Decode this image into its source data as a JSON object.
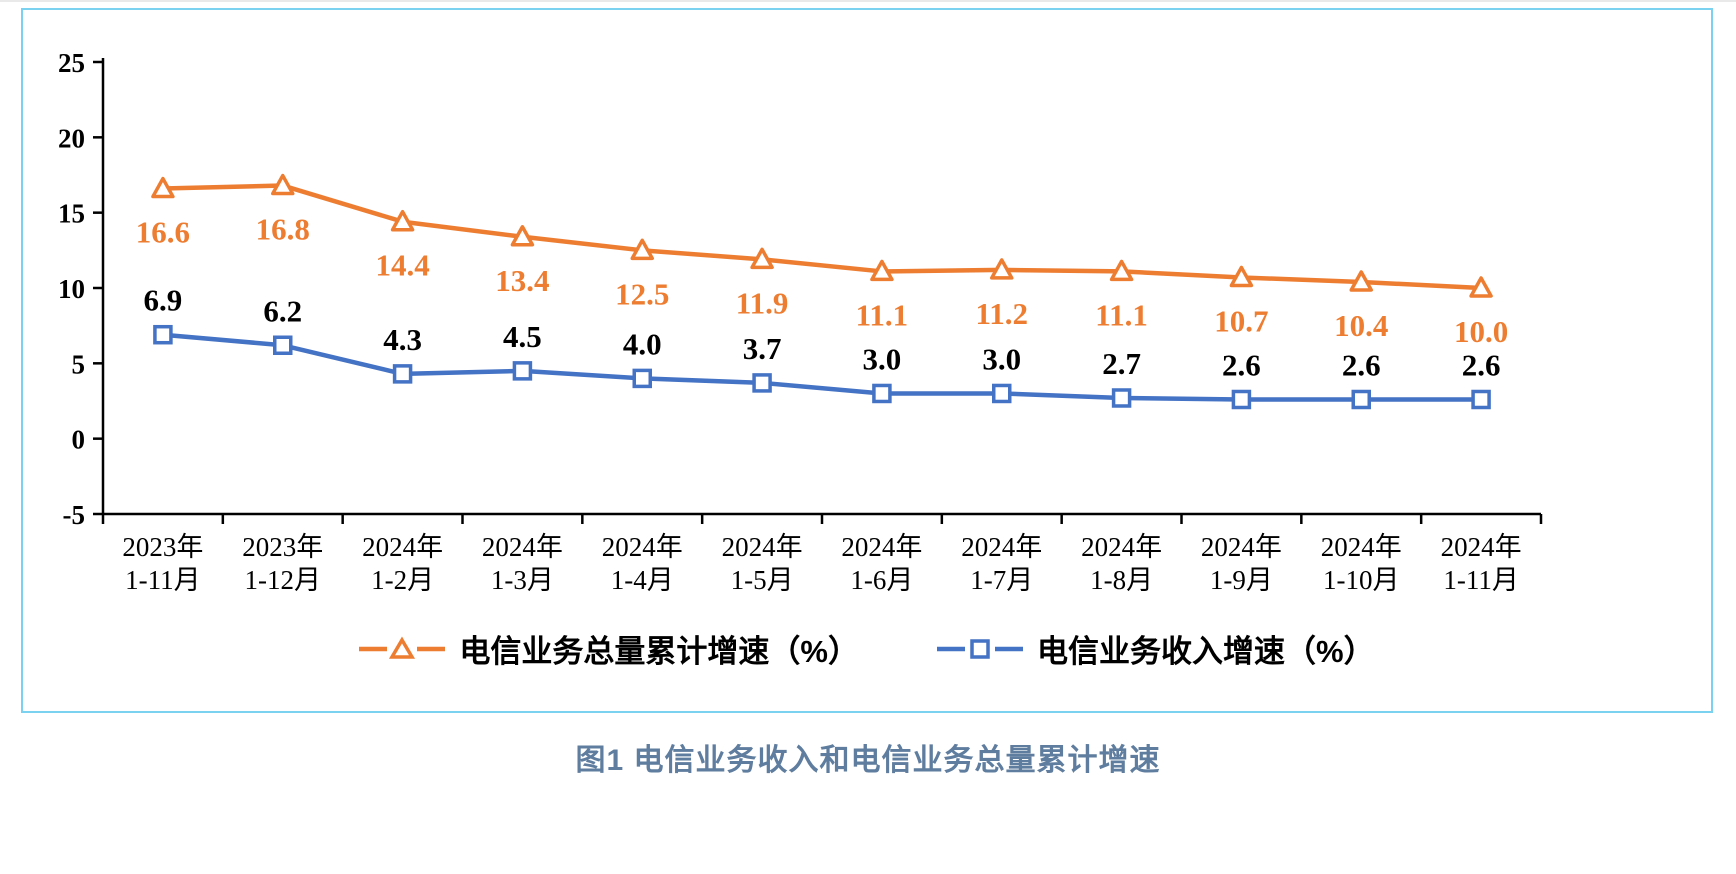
{
  "page": {
    "caption": "图1 电信业务收入和电信业务总量累计增速"
  },
  "chart_data": {
    "type": "line",
    "title": "",
    "xlabel": "",
    "ylabel": "",
    "ylim": [
      -5,
      25
    ],
    "yticks": [
      -5,
      0,
      5,
      10,
      15,
      20,
      25
    ],
    "grid": false,
    "legend_position": "bottom",
    "categories": [
      [
        "2023年",
        "1-11月"
      ],
      [
        "2023年",
        "1-12月"
      ],
      [
        "2024年",
        "1-2月"
      ],
      [
        "2024年",
        "1-3月"
      ],
      [
        "2024年",
        "1-4月"
      ],
      [
        "2024年",
        "1-5月"
      ],
      [
        "2024年",
        "1-6月"
      ],
      [
        "2024年",
        "1-7月"
      ],
      [
        "2024年",
        "1-8月"
      ],
      [
        "2024年",
        "1-9月"
      ],
      [
        "2024年",
        "1-10月"
      ],
      [
        "2024年",
        "1-11月"
      ]
    ],
    "series": [
      {
        "name": "电信业务总量累计增速（%）",
        "color": "#ED7D31",
        "marker": "triangle",
        "label_color": "#ED7D31",
        "label_position": "below",
        "values": [
          16.6,
          16.8,
          14.4,
          13.4,
          12.5,
          11.9,
          11.1,
          11.2,
          11.1,
          10.7,
          10.4,
          10.0
        ]
      },
      {
        "name": "电信业务收入增速（%）",
        "color": "#4472C4",
        "marker": "square",
        "label_color": "#000000",
        "label_position": "above",
        "values": [
          6.9,
          6.2,
          4.3,
          4.5,
          4.0,
          3.7,
          3.0,
          3.0,
          2.7,
          2.6,
          2.6,
          2.6
        ]
      }
    ]
  }
}
